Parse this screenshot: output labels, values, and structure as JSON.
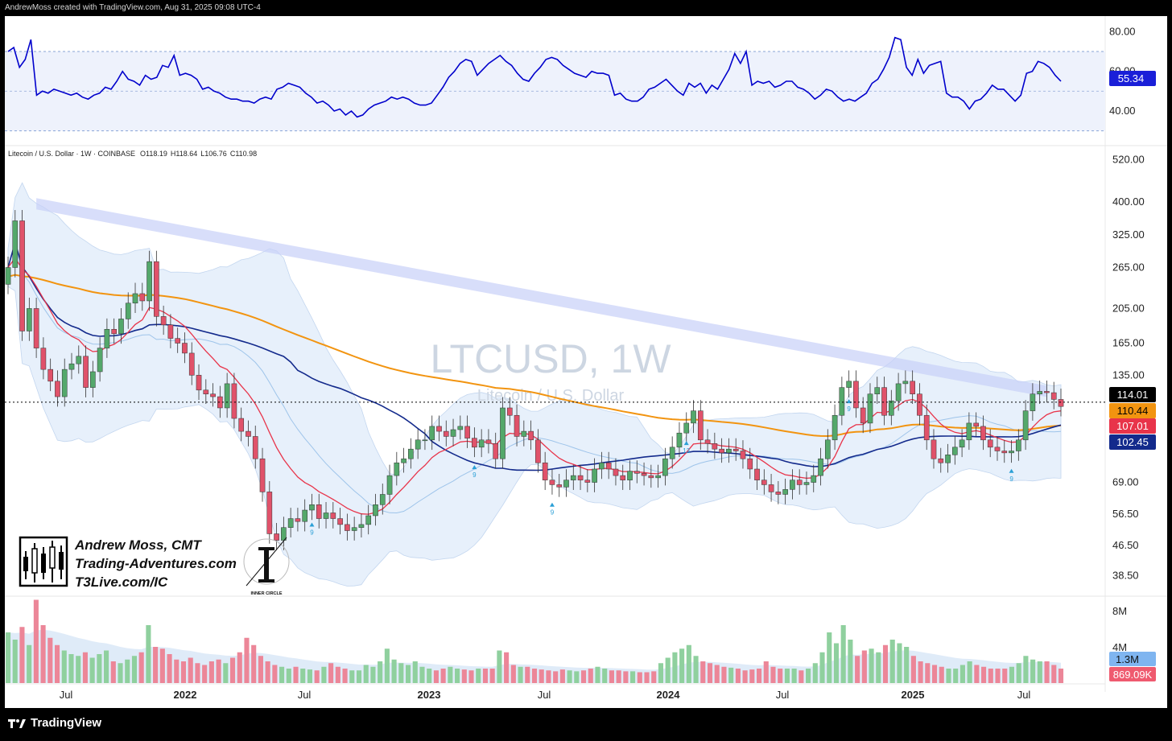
{
  "header": {
    "caption": "AndrewMoss created with TradingView.com, Aug 31, 2025 09:08 UTC-4"
  },
  "footer": {
    "brand": "TradingView"
  },
  "watermark": {
    "symbol": "LTCUSD, 1W",
    "name": "Litecoin / U.S. Dollar"
  },
  "legend": {
    "title": "Litecoin / U.S. Dollar · 1W · COINBASE",
    "open": "O118.19",
    "high": "H118.64",
    "low": "L106.76",
    "close": "C110.98"
  },
  "branding": {
    "name": "Andrew Moss, CMT",
    "site": "Trading-Adventures.com",
    "link": "T3Live.com/IC",
    "badge": "INNER CIRCLE"
  },
  "colors": {
    "rsi": "#0000cc",
    "ema_fast": "#e8344a",
    "ma_mid": "#132a8c",
    "ma_slow": "#f29410",
    "up": "#54a86b",
    "down": "#e0526a",
    "trend_band": "#c8d0f8",
    "bb": "#e4eefa"
  },
  "chart_data": [
    {
      "type": "line",
      "name": "RSI",
      "ylim": [
        25,
        85
      ],
      "ticks": [
        "80.00",
        "60.00",
        "40.00"
      ],
      "levels": [
        70,
        50,
        30
      ],
      "last_value": "55.34",
      "values": [
        70,
        72,
        62,
        66,
        76,
        48,
        50,
        49,
        51,
        50,
        49,
        48,
        49,
        47,
        46,
        48,
        49,
        52,
        51,
        55,
        60,
        56,
        55,
        53,
        58,
        56,
        57,
        63,
        62,
        68,
        58,
        59,
        58,
        56,
        51,
        52,
        50,
        49,
        47,
        46,
        46,
        45,
        45,
        44,
        46,
        47,
        46,
        51,
        52,
        54,
        53,
        52,
        49,
        47,
        44,
        45,
        43,
        40,
        41,
        38,
        40,
        37,
        38,
        41,
        43,
        44,
        45,
        47,
        46,
        47,
        46,
        44,
        43,
        43,
        44,
        48,
        52,
        57,
        60,
        64,
        66,
        65,
        58,
        61,
        64,
        66,
        68,
        65,
        63,
        59,
        56,
        55,
        59,
        62,
        66,
        67,
        66,
        63,
        61,
        59,
        58,
        57,
        60,
        59,
        59,
        58,
        48,
        49,
        46,
        45,
        45,
        47,
        51,
        52,
        54,
        56,
        53,
        50,
        48,
        54,
        52,
        54,
        49,
        53,
        51,
        56,
        61,
        69,
        64,
        70,
        53,
        55,
        54,
        55,
        52,
        53,
        55,
        55,
        52,
        51,
        49,
        46,
        48,
        51,
        50,
        47,
        45,
        46,
        45,
        47,
        49,
        54,
        56,
        61,
        67,
        77,
        76,
        62,
        58,
        66,
        59,
        63,
        64,
        65,
        49,
        47,
        47,
        45,
        41,
        45,
        46,
        49,
        53,
        51,
        51,
        48,
        45,
        48,
        59,
        60,
        65,
        64,
        62,
        58,
        55
      ]
    },
    {
      "type": "candlestick",
      "name": "Litecoin / U.S. Dollar",
      "scale": "log",
      "ylim": [
        34,
        560
      ],
      "ticks": [
        "520.00",
        "400.00",
        "325.00",
        "265.00",
        "205.00",
        "165.00",
        "135.00",
        "69.00",
        "56.50",
        "46.50",
        "38.50"
      ],
      "x_ticks": [
        "Jul",
        "2022",
        "Jul",
        "2023",
        "Jul",
        "2024",
        "Jul",
        "2025",
        "Jul"
      ],
      "last_price": "114.01",
      "close": [
        265,
        355,
        178,
        205,
        160,
        140,
        130,
        118,
        140,
        145,
        152,
        125,
        138,
        160,
        180,
        175,
        192,
        212,
        225,
        215,
        275,
        195,
        185,
        170,
        165,
        155,
        135,
        123,
        120,
        118,
        110,
        128,
        103,
        95,
        92,
        80,
        65,
        50,
        48,
        52,
        55,
        54,
        58,
        60,
        55,
        57,
        55,
        53,
        51,
        52,
        53,
        56,
        60,
        64,
        72,
        78,
        80,
        85,
        90,
        90,
        98,
        95,
        92,
        96,
        98,
        91,
        86,
        90,
        88,
        80,
        110,
        105,
        92,
        95,
        90,
        78,
        70,
        68,
        67,
        70,
        72,
        70,
        69,
        75,
        78,
        75,
        72,
        70,
        74,
        73,
        72,
        71,
        72,
        80,
        86,
        94,
        100,
        108,
        90,
        88,
        85,
        83,
        85,
        84,
        80,
        75,
        70,
        68,
        65,
        64,
        66,
        70,
        68,
        69,
        72,
        80,
        90,
        105,
        125,
        130,
        110,
        100,
        120,
        125,
        105,
        115,
        128,
        130,
        120,
        105,
        90,
        80,
        78,
        82,
        86,
        90,
        100,
        98,
        90,
        86,
        84,
        83,
        84,
        90,
        108,
        120,
        122,
        121,
        116,
        111
      ],
      "series": [
        {
          "name": "EMA 10",
          "value": "107.01"
        },
        {
          "name": "MA 40",
          "value": "102.45"
        },
        {
          "name": "MA 200",
          "value": "110.44"
        }
      ],
      "markers": [
        {
          "label": "9",
          "week": 43
        },
        {
          "label": "9",
          "week": 66
        },
        {
          "label": "9",
          "week": 77
        },
        {
          "label": "9",
          "week": 119
        },
        {
          "label": "9",
          "week": 142
        },
        {
          "label": "13",
          "week": 96
        },
        {
          "label": "9",
          "week": 158
        },
        {
          "label": "9",
          "week": 175
        }
      ]
    },
    {
      "type": "bar",
      "name": "Volume",
      "ticks": [
        "8M",
        "4M"
      ],
      "ylim": [
        0,
        8
      ],
      "volume_ma": "1.3M",
      "last_volume": "869.09K",
      "values_m": [
        5.6,
        4.8,
        6.2,
        4.2,
        9.2,
        6.4,
        5.0,
        4.2,
        3.6,
        3.2,
        3.0,
        3.4,
        2.8,
        3.2,
        3.6,
        2.4,
        2.2,
        2.6,
        3.0,
        3.4,
        6.4,
        4.0,
        3.8,
        3.2,
        2.6,
        2.4,
        2.8,
        2.2,
        2.0,
        2.4,
        2.6,
        2.2,
        2.8,
        3.4,
        5.0,
        4.2,
        3.0,
        2.4,
        2.0,
        1.8,
        1.6,
        1.8,
        1.6,
        1.5,
        1.4,
        1.8,
        2.2,
        1.8,
        1.6,
        1.4,
        1.4,
        2.0,
        1.8,
        2.4,
        3.8,
        2.6,
        2.2,
        2.0,
        2.4,
        1.8,
        1.6,
        1.4,
        1.6,
        1.8,
        1.6,
        1.5,
        1.4,
        1.6,
        1.6,
        1.6,
        3.6,
        3.4,
        2.0,
        1.8,
        1.8,
        1.6,
        1.5,
        1.4,
        1.3,
        1.5,
        1.4,
        1.3,
        1.4,
        1.6,
        1.8,
        1.6,
        1.4,
        1.4,
        1.3,
        1.3,
        1.2,
        1.2,
        1.3,
        2.2,
        2.8,
        3.4,
        3.8,
        4.2,
        3.0,
        2.4,
        2.2,
        2.0,
        1.8,
        1.7,
        1.6,
        1.4,
        1.5,
        1.6,
        2.4,
        1.8,
        1.6,
        1.6,
        1.6,
        1.4,
        1.6,
        2.2,
        3.4,
        5.6,
        4.4,
        6.4,
        4.8,
        3.0,
        3.6,
        3.8,
        3.4,
        4.2,
        4.8,
        4.4,
        4.0,
        3.0,
        2.4,
        2.2,
        2.0,
        1.8,
        1.6,
        1.6,
        2.0,
        2.4,
        2.0,
        1.8,
        1.6,
        1.6,
        1.6,
        1.8,
        2.2,
        3.0,
        2.6,
        2.4,
        2.4,
        2.0,
        1.6
      ]
    }
  ]
}
